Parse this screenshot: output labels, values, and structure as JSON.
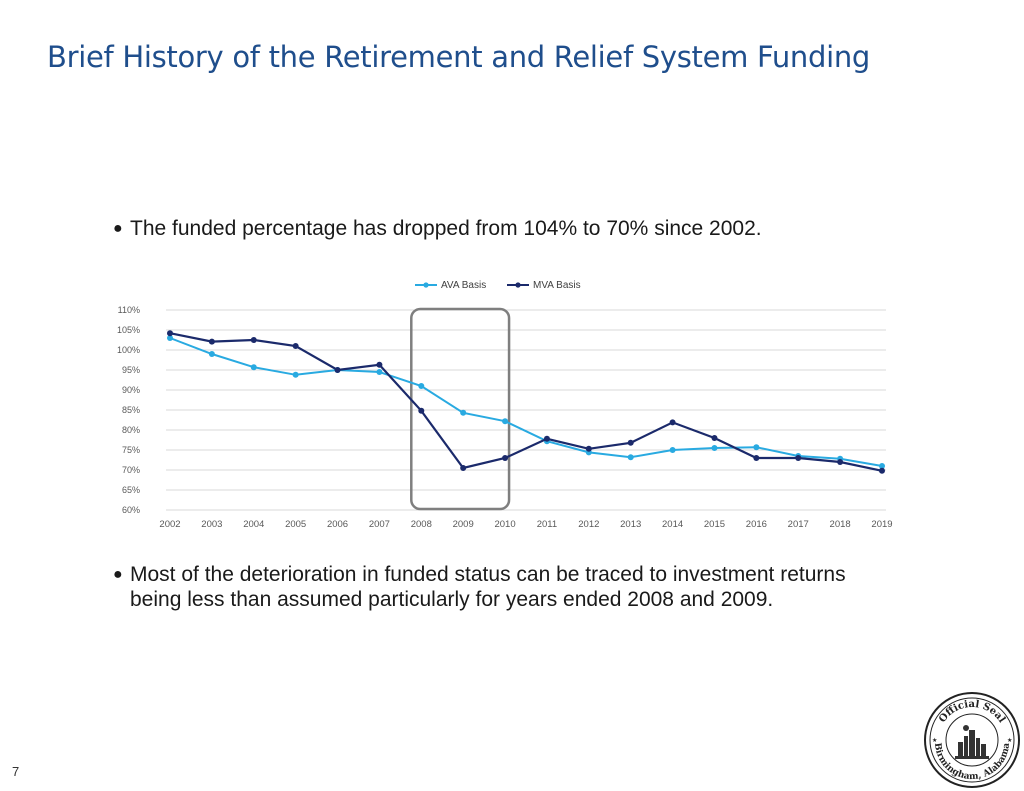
{
  "slide": {
    "title": "Brief History of the Retirement and Relief System Funding",
    "bullets": [
      "The funded percentage has dropped from 104% to 70% since 2002.",
      "Most of the deterioration in funded status can be traced to investment returns being less than assumed particularly for years ended 2008 and 2009."
    ],
    "page_number": "7"
  },
  "seal": {
    "text_top": "Official Seal",
    "text_bottom": "Birmingham, Alabama"
  },
  "chart_data": {
    "type": "line",
    "title": "",
    "xlabel": "",
    "ylabel": "",
    "x": [
      "2002",
      "2003",
      "2004",
      "2005",
      "2006",
      "2007",
      "2008",
      "2009",
      "2010",
      "2011",
      "2012",
      "2013",
      "2014",
      "2015",
      "2016",
      "2017",
      "2018",
      "2019"
    ],
    "y_ticks": [
      "60%",
      "65%",
      "70%",
      "75%",
      "80%",
      "85%",
      "90%",
      "95%",
      "100%",
      "105%",
      "110%"
    ],
    "ylim": [
      60,
      110
    ],
    "grid": true,
    "legend_position": "top-center",
    "highlight": {
      "from": "2008",
      "to": "2010"
    },
    "series": [
      {
        "name": "AVA Basis",
        "color": "#29aae1",
        "values": [
          103,
          99,
          95.7,
          93.8,
          95,
          94.5,
          91,
          84.3,
          82.2,
          77.2,
          74.4,
          73.2,
          75,
          75.5,
          75.7,
          73.5,
          72.8,
          71
        ]
      },
      {
        "name": "MVA Basis",
        "color": "#1b2a6b",
        "values": [
          104.2,
          102.1,
          102.5,
          101,
          95,
          96.3,
          84.8,
          70.5,
          73,
          77.8,
          75.3,
          76.8,
          81.9,
          78,
          73,
          73,
          72,
          69.8
        ]
      }
    ]
  }
}
